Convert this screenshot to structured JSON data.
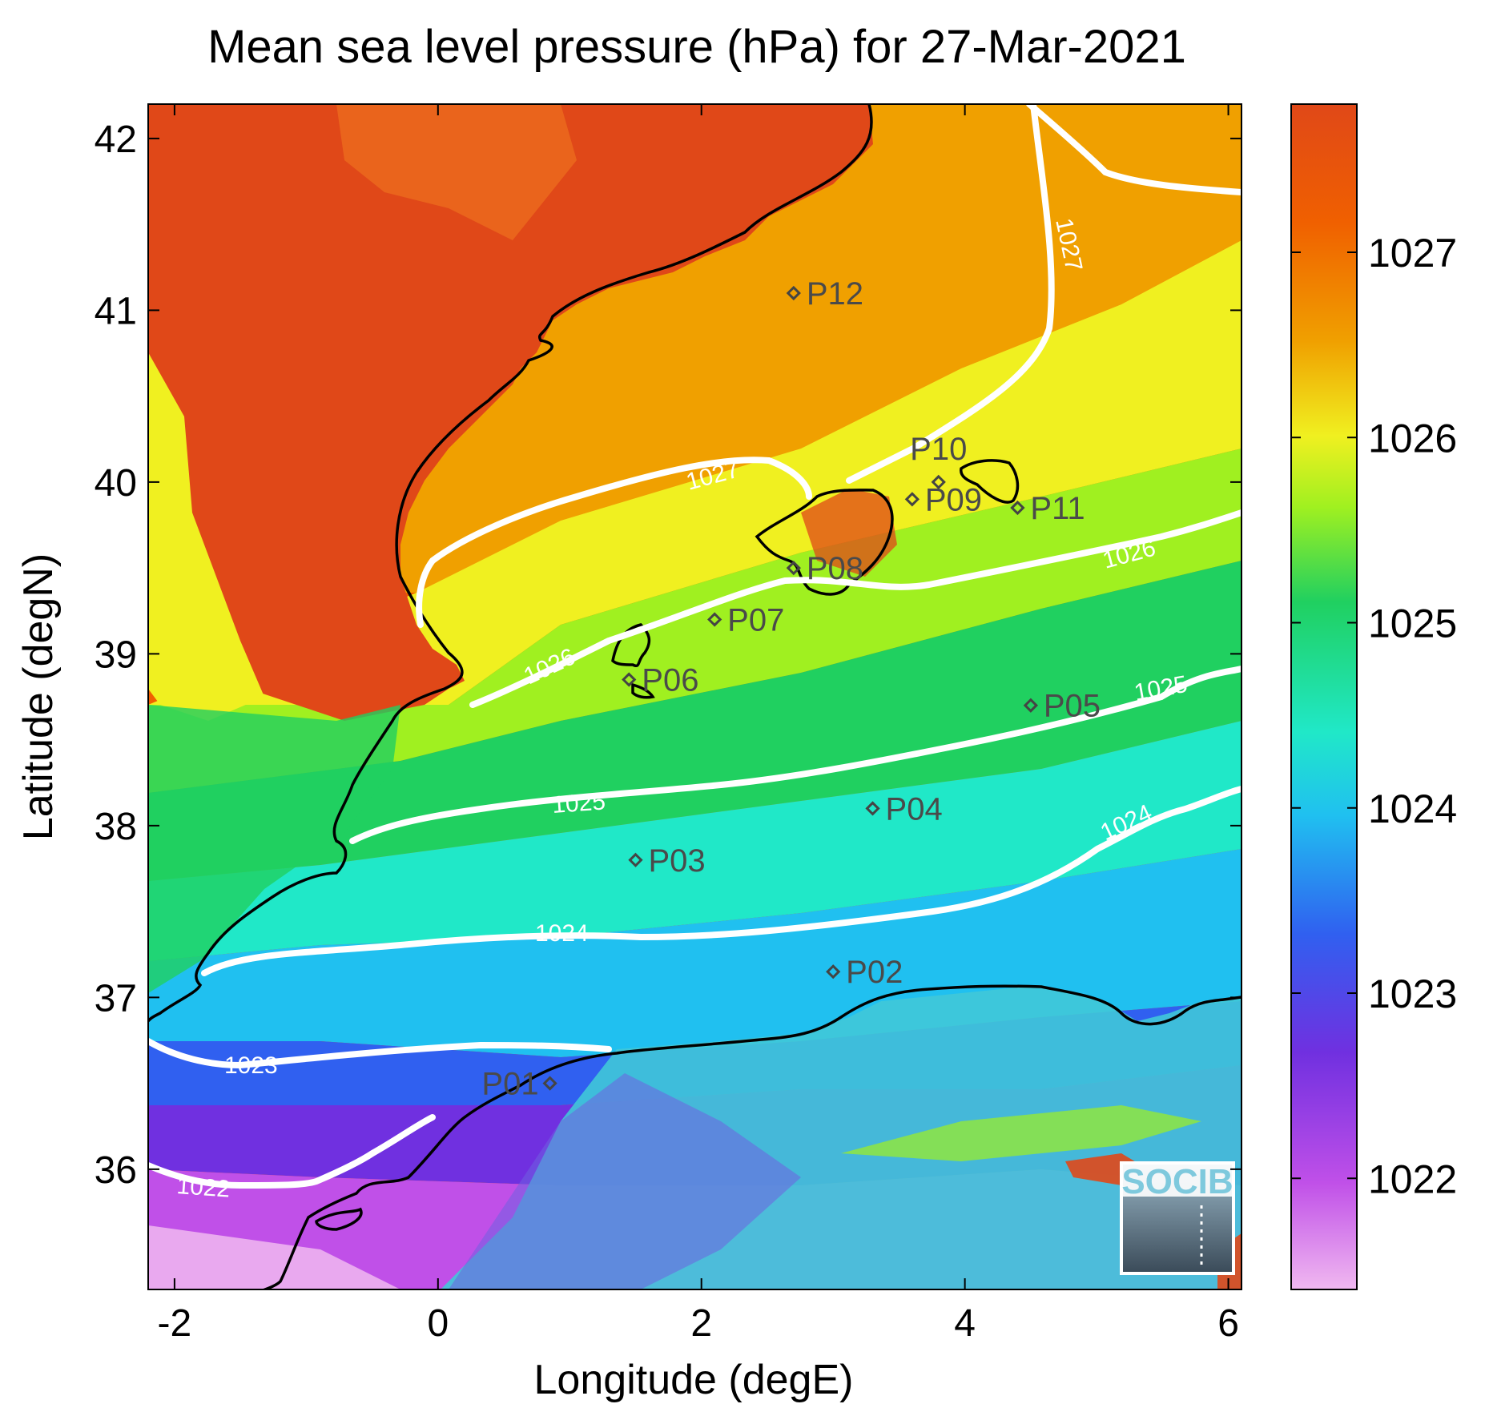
{
  "title": "Mean sea level pressure (hPa) for 27-Mar-2021",
  "xlabel": "Longitude (degE)",
  "ylabel": "Latitude (degN)",
  "logo_text": "SOCIB",
  "chart_data": {
    "type": "heatmap",
    "title": "Mean sea level pressure (hPa) for 27-Mar-2021",
    "xlabel": "Longitude (degE)",
    "ylabel": "Latitude (degN)",
    "xlim": [
      -2.2,
      6.1
    ],
    "ylim": [
      35.3,
      42.2
    ],
    "x_ticks": [
      -2,
      0,
      2,
      4,
      6
    ],
    "y_ticks": [
      36,
      37,
      38,
      39,
      40,
      41,
      42
    ],
    "colorbar": {
      "range": [
        1021.4,
        1027.8
      ],
      "ticks": [
        1022,
        1023,
        1024,
        1025,
        1026,
        1027
      ],
      "colormap": [
        "#f0b8f0",
        "#c050e8",
        "#7030e0",
        "#3060f0",
        "#20c0f0",
        "#20e8c8",
        "#20d060",
        "#a0f020",
        "#f0f020",
        "#f0a000",
        "#f06000",
        "#e04818"
      ]
    },
    "contour_levels": [
      {
        "level": 1022,
        "label": "1022"
      },
      {
        "level": 1023,
        "label": "1023"
      },
      {
        "level": 1024,
        "label": "1024"
      },
      {
        "level": 1025,
        "label": "1025"
      },
      {
        "level": 1026,
        "label": "1026"
      },
      {
        "level": 1027,
        "label": "1027"
      }
    ],
    "stations": [
      {
        "name": "P01",
        "lon": 0.85,
        "lat": 36.5
      },
      {
        "name": "P02",
        "lon": 3.0,
        "lat": 37.15
      },
      {
        "name": "P03",
        "lon": 1.5,
        "lat": 37.8
      },
      {
        "name": "P04",
        "lon": 3.3,
        "lat": 38.1
      },
      {
        "name": "P05",
        "lon": 4.5,
        "lat": 38.7
      },
      {
        "name": "P06",
        "lon": 1.45,
        "lat": 38.85
      },
      {
        "name": "P07",
        "lon": 2.1,
        "lat": 39.2
      },
      {
        "name": "P08",
        "lon": 2.7,
        "lat": 39.5
      },
      {
        "name": "P09",
        "lon": 3.6,
        "lat": 39.9
      },
      {
        "name": "P10",
        "lon": 3.8,
        "lat": 40.0
      },
      {
        "name": "P11",
        "lon": 4.4,
        "lat": 39.85
      },
      {
        "name": "P12",
        "lon": 2.7,
        "lat": 41.1
      }
    ]
  }
}
